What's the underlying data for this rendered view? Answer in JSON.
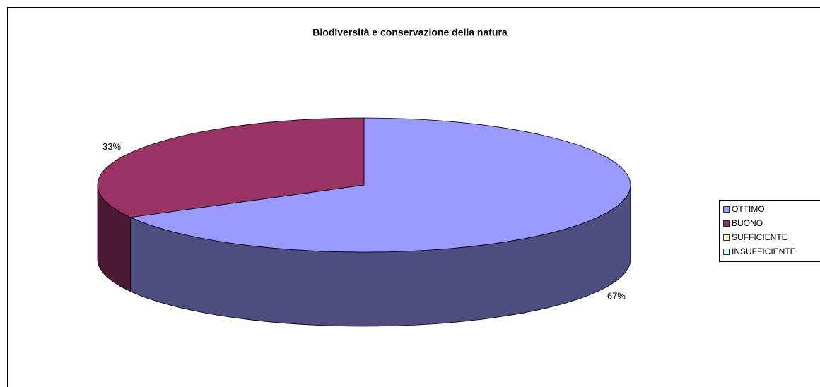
{
  "chart_data": {
    "type": "pie",
    "title": "Biodiversità e conservazione della natura",
    "categories": [
      "OTTIMO",
      "BUONO",
      "SUFFICIENTE",
      "INSUFFICIENTE"
    ],
    "values": [
      67,
      33,
      0,
      0
    ],
    "value_labels": [
      "67%",
      "33%",
      null,
      null
    ],
    "colors": [
      "#9999ff",
      "#993366",
      "#ffffcc",
      "#ccffff"
    ],
    "legend": "right"
  }
}
